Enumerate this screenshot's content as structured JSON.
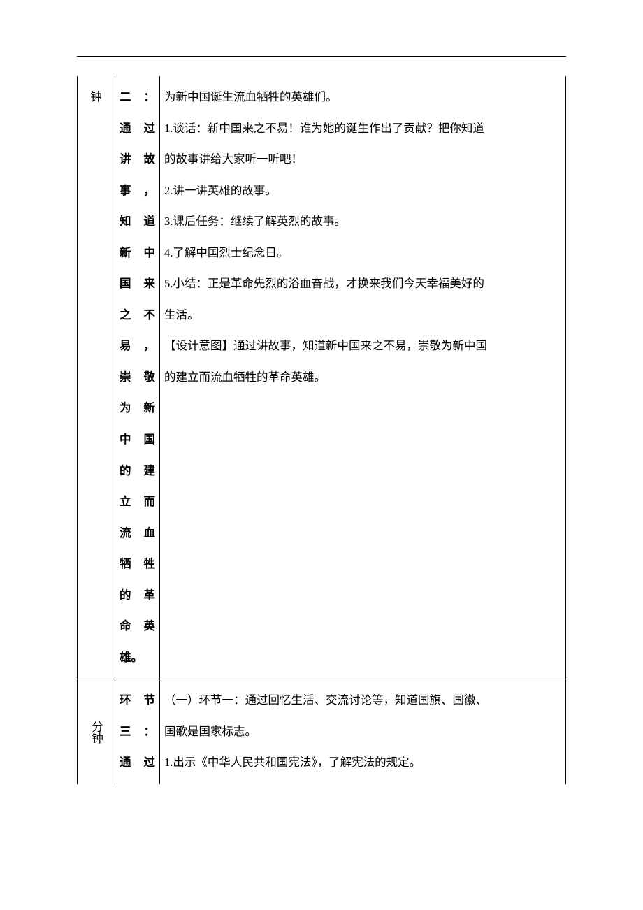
{
  "rows": [
    {
      "time": "钟",
      "stage_segments": [
        "二：",
        "通过",
        "讲故",
        "事，",
        "知道",
        "新中",
        "国来",
        "之不",
        "易，",
        "崇敬",
        "为新",
        "中国",
        "的建",
        "立而",
        "流血",
        "牺牲",
        "的革",
        "命英"
      ],
      "stage_last": "雄。",
      "content_lines": [
        "为新中国诞生流血牺牲的英雄们。",
        "1.谈话：新中国来之不易！谁为她的诞生作出了贡献？把你知道",
        "的故事讲给大家听一听吧！",
        "2.讲一讲英雄的故事。",
        "3.课后任务：继续了解英烈的故事。",
        "4.了解中国烈士纪念日。",
        "5.小结：正是革命先烈的浴血奋战，才换来我们今天幸福美好的",
        "生活。",
        "【设计意图】通过讲故事，知道新中国来之不易，崇敬为新中国",
        "的建立而流血牺牲的革命英雄。"
      ]
    },
    {
      "time": "分钟",
      "stage_segments": [
        "环节",
        "三："
      ],
      "stage_last": "通过",
      "content_lines": [
        "（一）环节一：通过回忆生活、交流讨论等，知道国旗、国徽、",
        "国歌是国家标志。",
        "1.出示《中华人民共和国宪法》，了解宪法的规定。"
      ]
    }
  ]
}
